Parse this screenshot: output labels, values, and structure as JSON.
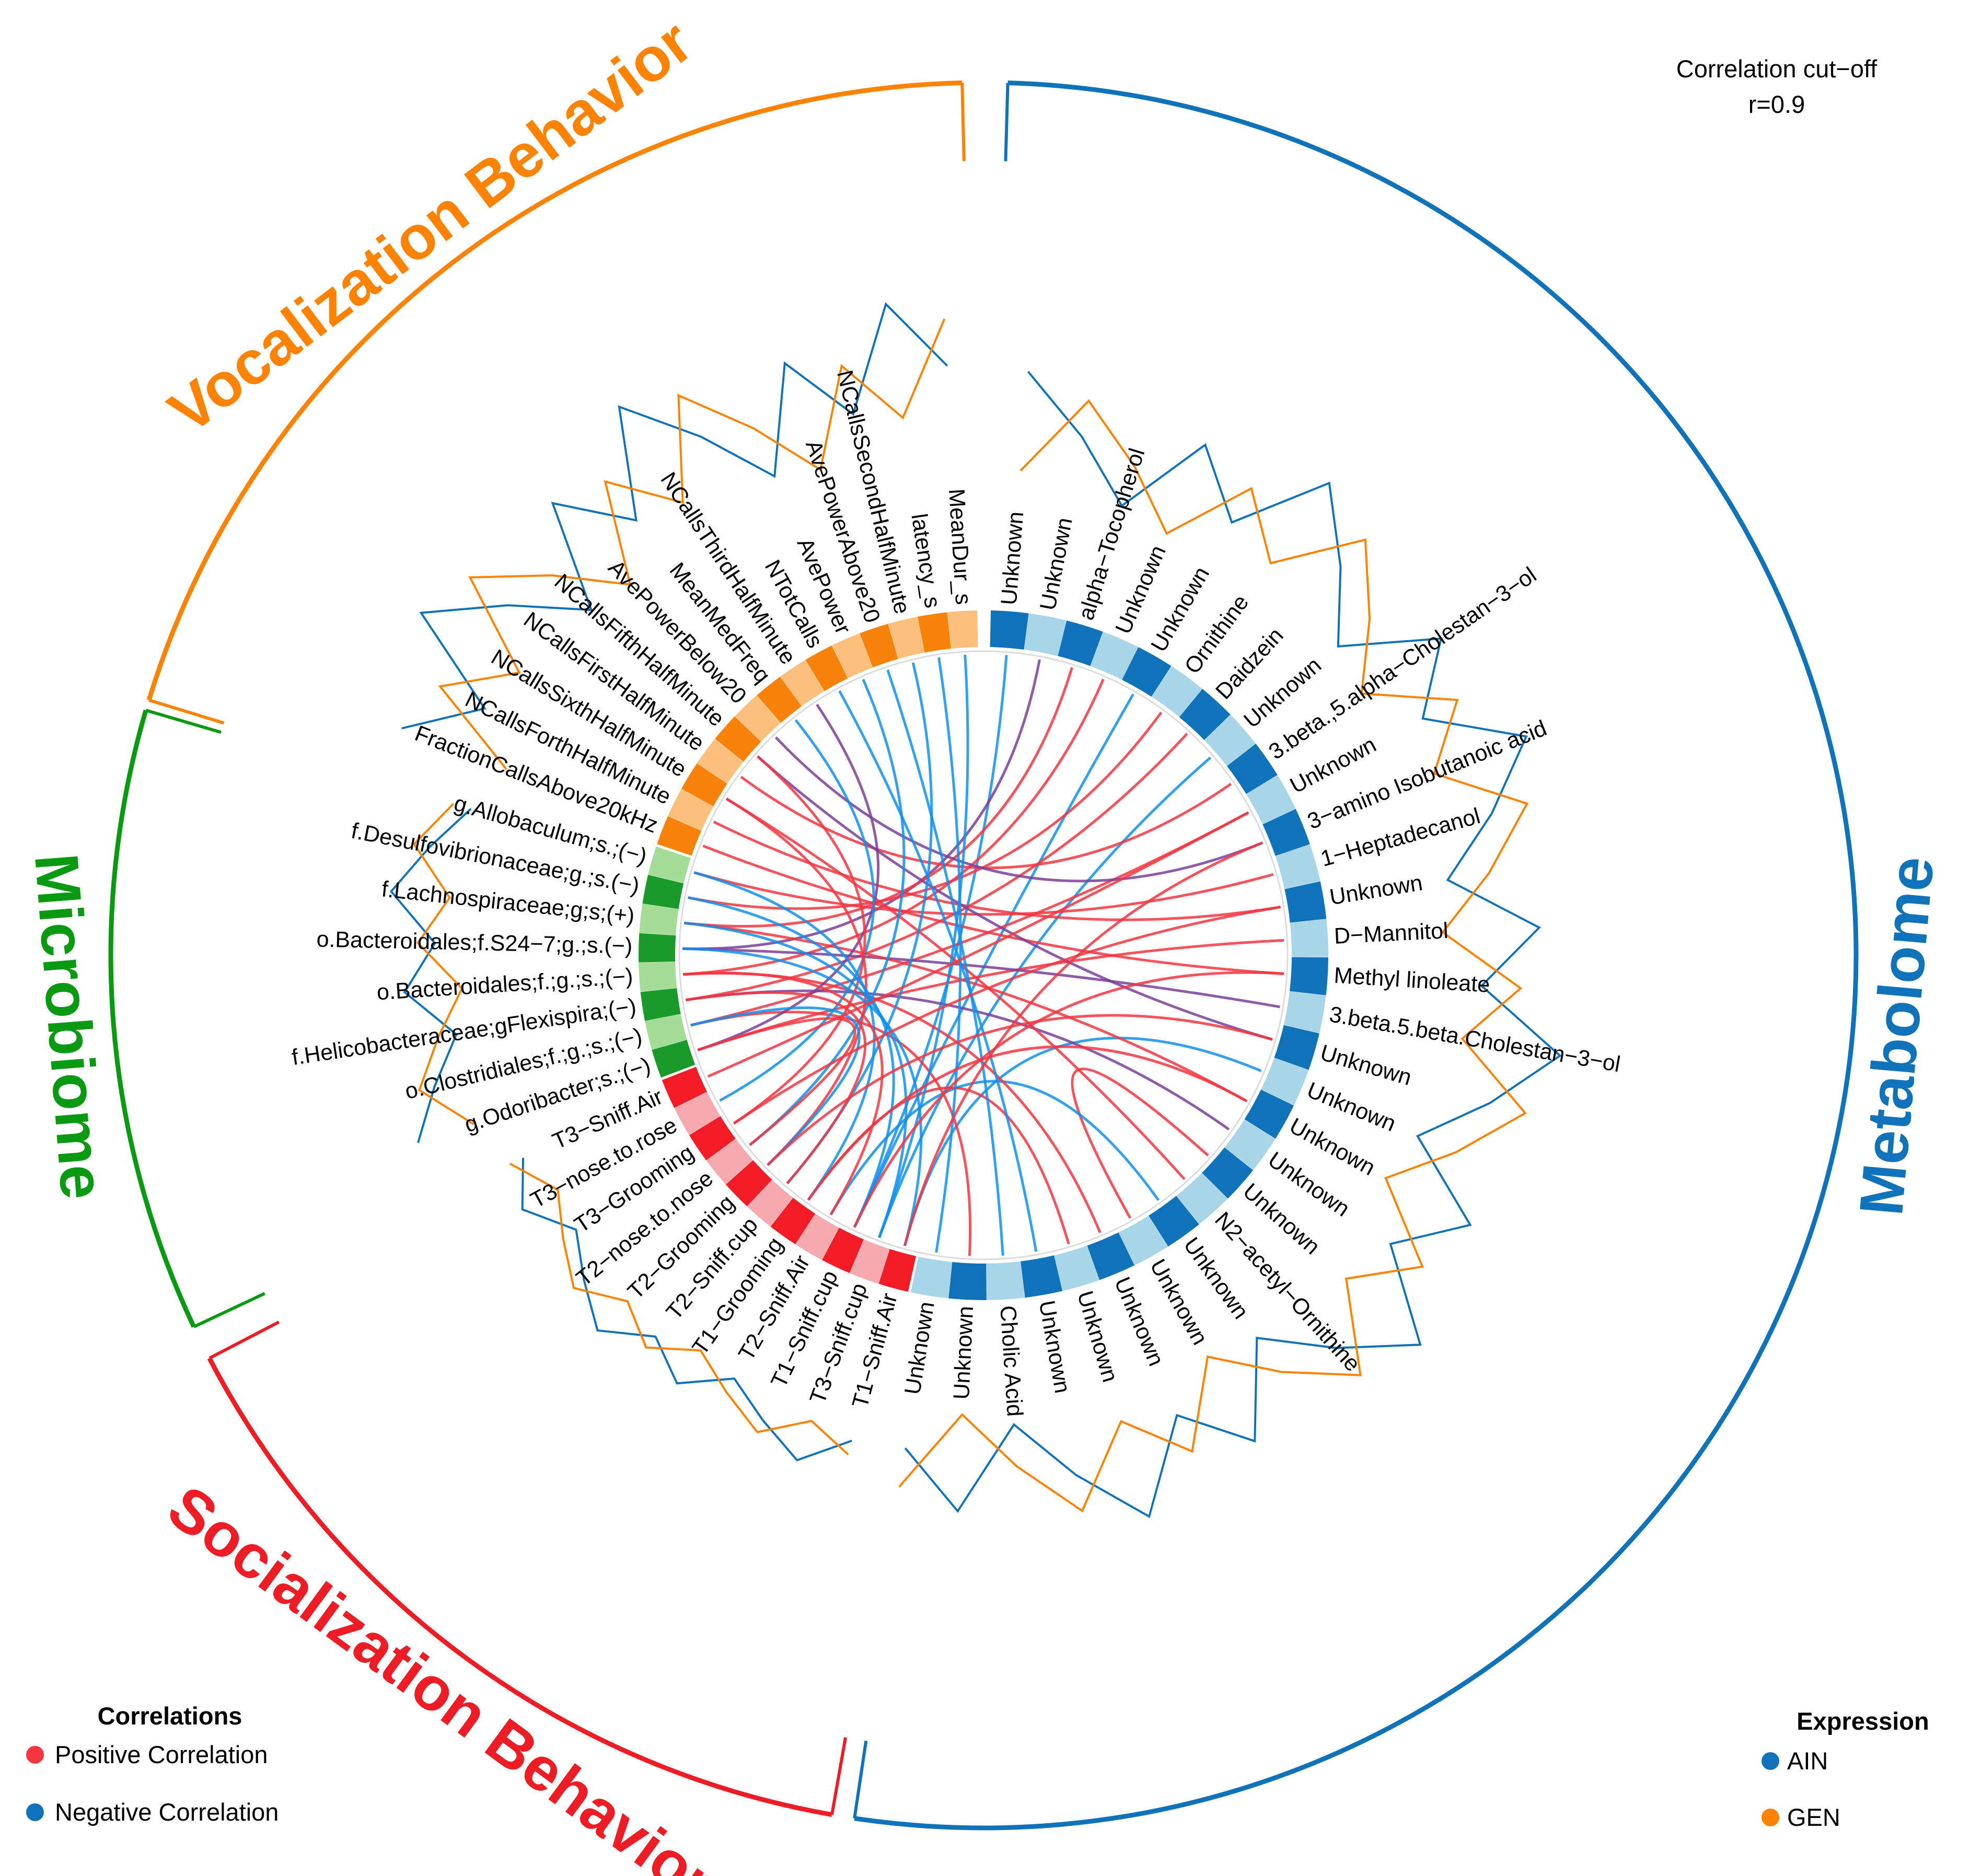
{
  "cutoff": {
    "line1": "Correlation cut−off",
    "line2": "r=0.9"
  },
  "colors": {
    "vocal": "#ff8200",
    "micro": "#0a9a12",
    "social": "#ee1c25",
    "metab": "#1072b9",
    "positive": "#f6353f",
    "negative": "#0f8fee",
    "mixed": "#7b3f99",
    "ain": "#1072b9",
    "gen": "#ff8200"
  },
  "groups": [
    {
      "key": "vocal",
      "label": "Vocalization Behavior"
    },
    {
      "key": "micro",
      "label": "Microbiome"
    },
    {
      "key": "social",
      "label": "Socialization Behavior"
    },
    {
      "key": "metab",
      "label": "Metabolome"
    }
  ],
  "sectors": {
    "vocal": [
      {
        "label": "MeanDur_s",
        "fill": "#fcc07c"
      },
      {
        "label": "latency_s",
        "fill": "#f9820a"
      },
      {
        "label": "NCallsSecondHalfMinute",
        "fill": "#fcc07c"
      },
      {
        "label": "AvePowerAbove20",
        "fill": "#f9820a"
      },
      {
        "label": "AvePower",
        "fill": "#fcc07c"
      },
      {
        "label": "NTotCalls",
        "fill": "#f9820a"
      },
      {
        "label": "NCallsThirdHalfMinute",
        "fill": "#fcc07c"
      },
      {
        "label": "MeanMedFreq",
        "fill": "#f9820a"
      },
      {
        "label": "AvePowerBelow20",
        "fill": "#fcc07c"
      },
      {
        "label": "NCallsFifthHalfMinute",
        "fill": "#f9820a"
      },
      {
        "label": "NCallsFirstHalfMinute",
        "fill": "#fcc07c"
      },
      {
        "label": "NCallsSixthHalfMinute",
        "fill": "#f9820a"
      },
      {
        "label": "NCallsForthHalfMinute",
        "fill": "#fcc07c"
      },
      {
        "label": "FractionCallsAbove20kHz",
        "fill": "#f9820a"
      }
    ],
    "micro": [
      {
        "label": "g.Allobaculum;s.;(−)",
        "fill": "#a4dd98"
      },
      {
        "label": "f.Desulfovibrionaceae;g.;s.(−)",
        "fill": "#1a9a2a"
      },
      {
        "label": "f.Lachnospiraceae;g;s;(+)",
        "fill": "#a4dd98"
      },
      {
        "label": "o.Bacteroidales;f.S24−7;g.;s.(−)",
        "fill": "#1a9a2a"
      },
      {
        "label": "o.Bacteroidales;f.;g.;s.;(−)",
        "fill": "#a4dd98"
      },
      {
        "label": "f.Helicobacteraceae;gFlexispira;(−)",
        "fill": "#1a9a2a"
      },
      {
        "label": "o.Clostridiales;f.;g.;s.;(−)",
        "fill": "#a4dd98"
      },
      {
        "label": "g.Odoribacter;s.;(−)",
        "fill": "#1a9a2a"
      }
    ],
    "social": [
      {
        "label": "T3−Sniff.Air",
        "fill": "#f21c27"
      },
      {
        "label": "T3−nose.to.rose",
        "fill": "#f6a9ae"
      },
      {
        "label": "T3−Grooming",
        "fill": "#f21c27"
      },
      {
        "label": "T2−nose.to.nose",
        "fill": "#f6a9ae"
      },
      {
        "label": "T2−Grooming",
        "fill": "#f21c27"
      },
      {
        "label": "T2−Sniff.cup",
        "fill": "#f6a9ae"
      },
      {
        "label": "T1−Grooming",
        "fill": "#f21c27"
      },
      {
        "label": "T2−Sniff.Air",
        "fill": "#f6a9ae"
      },
      {
        "label": "T1−Sniff.cup",
        "fill": "#f21c27"
      },
      {
        "label": "T3−Sniff.cup",
        "fill": "#f6a9ae"
      },
      {
        "label": "T1−Sniff.Air",
        "fill": "#f21c27"
      }
    ],
    "metab": [
      {
        "label": "Unknown",
        "fill": "#a8d6e8"
      },
      {
        "label": "Unknown",
        "fill": "#1072b9"
      },
      {
        "label": "Cholic Acid",
        "fill": "#a8d6e8"
      },
      {
        "label": "Unknown",
        "fill": "#1072b9"
      },
      {
        "label": "Unknown",
        "fill": "#a8d6e8"
      },
      {
        "label": "Unknown",
        "fill": "#1072b9"
      },
      {
        "label": "Unknown",
        "fill": "#a8d6e8"
      },
      {
        "label": "Unknown",
        "fill": "#1072b9"
      },
      {
        "label": "N2−acetyl−Ornithine",
        "fill": "#a8d6e8"
      },
      {
        "label": "Unknown",
        "fill": "#1072b9"
      },
      {
        "label": "Unknown",
        "fill": "#a8d6e8"
      },
      {
        "label": "Unknown",
        "fill": "#1072b9"
      },
      {
        "label": "Unknown",
        "fill": "#a8d6e8"
      },
      {
        "label": "Unknown",
        "fill": "#1072b9"
      },
      {
        "label": "3.beta.5.beta.Cholestan−3−ol",
        "fill": "#a8d6e8"
      },
      {
        "label": "Methyl linoleate",
        "fill": "#1072b9"
      },
      {
        "label": "D−Mannitol",
        "fill": "#a8d6e8"
      },
      {
        "label": "Unknown",
        "fill": "#1072b9"
      },
      {
        "label": "1−Heptadecanol",
        "fill": "#a8d6e8"
      },
      {
        "label": "3−amino Isobutanoic acid",
        "fill": "#1072b9"
      },
      {
        "label": "Unknown",
        "fill": "#a8d6e8"
      },
      {
        "label": "3.beta.,5.alpha−Cholestan−3−ol",
        "fill": "#1072b9"
      },
      {
        "label": "Unknown",
        "fill": "#a8d6e8"
      },
      {
        "label": "Daidzein",
        "fill": "#1072b9"
      },
      {
        "label": "Ornithine",
        "fill": "#a8d6e8"
      },
      {
        "label": "Unknown",
        "fill": "#1072b9"
      },
      {
        "label": "Unknown",
        "fill": "#a8d6e8"
      },
      {
        "label": "alpha−Tocopherol",
        "fill": "#1072b9"
      },
      {
        "label": "Unknown",
        "fill": "#a8d6e8"
      },
      {
        "label": "Unknown",
        "fill": "#1072b9"
      }
    ]
  },
  "links": [
    {
      "a": [
        "metab",
        29
      ],
      "b": [
        "social",
        8
      ],
      "type": "negative"
    },
    {
      "a": [
        "metab",
        28
      ],
      "b": [
        "micro",
        3
      ],
      "type": "mixed"
    },
    {
      "a": [
        "metab",
        27
      ],
      "b": [
        "micro",
        2
      ],
      "type": "positive"
    },
    {
      "a": [
        "metab",
        26
      ],
      "b": [
        "micro",
        4
      ],
      "type": "positive"
    },
    {
      "a": [
        "metab",
        25
      ],
      "b": [
        "social",
        8
      ],
      "type": "negative"
    },
    {
      "a": [
        "metab",
        24
      ],
      "b": [
        "micro",
        1
      ],
      "type": "positive"
    },
    {
      "a": [
        "metab",
        23
      ],
      "b": [
        "micro",
        5
      ],
      "type": "positive"
    },
    {
      "a": [
        "metab",
        22
      ],
      "b": [
        "social",
        9
      ],
      "type": "negative"
    },
    {
      "a": [
        "metab",
        21
      ],
      "b": [
        "vocal",
        10
      ],
      "type": "positive"
    },
    {
      "a": [
        "metab",
        20
      ],
      "b": [
        "micro",
        6
      ],
      "type": "positive"
    },
    {
      "a": [
        "metab",
        19
      ],
      "b": [
        "vocal",
        8
      ],
      "type": "mixed"
    },
    {
      "a": [
        "metab",
        18
      ],
      "b": [
        "micro",
        0
      ],
      "type": "positive"
    },
    {
      "a": [
        "metab",
        17
      ],
      "b": [
        "vocal",
        12
      ],
      "type": "positive"
    },
    {
      "a": [
        "metab",
        16
      ],
      "b": [
        "micro",
        7
      ],
      "type": "positive"
    },
    {
      "a": [
        "metab",
        15
      ],
      "b": [
        "vocal",
        13
      ],
      "type": "positive"
    },
    {
      "a": [
        "metab",
        14
      ],
      "b": [
        "micro",
        3
      ],
      "type": "mixed"
    },
    {
      "a": [
        "metab",
        13
      ],
      "b": [
        "vocal",
        9
      ],
      "type": "mixed"
    },
    {
      "a": [
        "metab",
        12
      ],
      "b": [
        "social",
        10
      ],
      "type": "negative"
    },
    {
      "a": [
        "metab",
        11
      ],
      "b": [
        "micro",
        2
      ],
      "type": "positive"
    },
    {
      "a": [
        "metab",
        10
      ],
      "b": [
        "micro",
        5
      ],
      "type": "mixed"
    },
    {
      "a": [
        "metab",
        9
      ],
      "b": [
        "metab",
        6
      ],
      "type": "positive"
    },
    {
      "a": [
        "metab",
        8
      ],
      "b": [
        "vocal",
        11
      ],
      "type": "positive"
    },
    {
      "a": [
        "metab",
        7
      ],
      "b": [
        "social",
        7
      ],
      "type": "negative"
    },
    {
      "a": [
        "metab",
        5
      ],
      "b": [
        "micro",
        4
      ],
      "type": "positive"
    },
    {
      "a": [
        "metab",
        4
      ],
      "b": [
        "social",
        6
      ],
      "type": "positive"
    },
    {
      "a": [
        "metab",
        3
      ],
      "b": [
        "vocal",
        5
      ],
      "type": "negative"
    },
    {
      "a": [
        "metab",
        2
      ],
      "b": [
        "vocal",
        3
      ],
      "type": "negative"
    },
    {
      "a": [
        "metab",
        1
      ],
      "b": [
        "micro",
        6
      ],
      "type": "positive"
    },
    {
      "a": [
        "metab",
        0
      ],
      "b": [
        "vocal",
        1
      ],
      "type": "negative"
    },
    {
      "a": [
        "vocal",
        0
      ],
      "b": [
        "social",
        9
      ],
      "type": "negative"
    },
    {
      "a": [
        "vocal",
        2
      ],
      "b": [
        "social",
        5
      ],
      "type": "negative"
    },
    {
      "a": [
        "vocal",
        4
      ],
      "b": [
        "social",
        3
      ],
      "type": "negative"
    },
    {
      "a": [
        "vocal",
        6
      ],
      "b": [
        "micro",
        7
      ],
      "type": "mixed"
    },
    {
      "a": [
        "vocal",
        7
      ],
      "b": [
        "social",
        1
      ],
      "type": "negative"
    },
    {
      "a": [
        "vocal",
        9
      ],
      "b": [
        "social",
        2
      ],
      "type": "positive"
    },
    {
      "a": [
        "vocal",
        11
      ],
      "b": [
        "social",
        4
      ],
      "type": "positive"
    },
    {
      "a": [
        "micro",
        0
      ],
      "b": [
        "social",
        6
      ],
      "type": "negative"
    },
    {
      "a": [
        "micro",
        1
      ],
      "b": [
        "social",
        8
      ],
      "type": "negative"
    },
    {
      "a": [
        "micro",
        2
      ],
      "b": [
        "social",
        9
      ],
      "type": "negative"
    },
    {
      "a": [
        "micro",
        3
      ],
      "b": [
        "social",
        10
      ],
      "type": "negative"
    },
    {
      "a": [
        "micro",
        4
      ],
      "b": [
        "social",
        7
      ],
      "type": "positive"
    },
    {
      "a": [
        "micro",
        5
      ],
      "b": [
        "social",
        5
      ],
      "type": "positive"
    },
    {
      "a": [
        "micro",
        6
      ],
      "b": [
        "social",
        4
      ],
      "type": "negative"
    },
    {
      "a": [
        "micro",
        7
      ],
      "b": [
        "social",
        3
      ],
      "type": "positive"
    },
    {
      "a": [
        "social",
        0
      ],
      "b": [
        "metab",
        20
      ],
      "type": "positive"
    },
    {
      "a": [
        "social",
        2
      ],
      "b": [
        "metab",
        17
      ],
      "type": "positive"
    },
    {
      "a": [
        "social",
        4
      ],
      "b": [
        "metab",
        13
      ],
      "type": "positive"
    },
    {
      "a": [
        "social",
        6
      ],
      "b": [
        "metab",
        11
      ],
      "type": "positive"
    },
    {
      "a": [
        "social",
        8
      ],
      "b": [
        "metab",
        15
      ],
      "type": "positive"
    },
    {
      "a": [
        "social",
        10
      ],
      "b": [
        "metab",
        19
      ],
      "type": "positive"
    }
  ],
  "legend_left": {
    "title": "Correlations",
    "items": [
      {
        "label": "Positive Correlation",
        "color": "#f6353f"
      },
      {
        "label": "Negative Correlation",
        "color": "#1072b9"
      }
    ]
  },
  "legend_right": {
    "title": "Expression",
    "items": [
      {
        "label": "AIN",
        "color": "#1072b9"
      },
      {
        "label": "GEN",
        "color": "#ff8200"
      }
    ]
  }
}
